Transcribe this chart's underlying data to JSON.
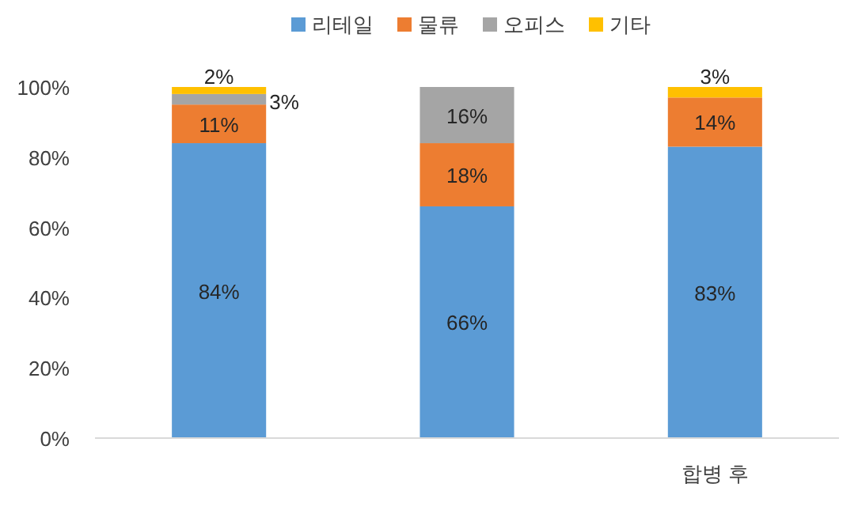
{
  "chart_data": {
    "type": "bar",
    "stacked": true,
    "categories": [
      null,
      null,
      "합병 후"
    ],
    "series": [
      {
        "name": "리테일",
        "color": "#5b9bd5",
        "values": [
          84,
          66,
          83
        ],
        "value_labels": [
          "84%",
          "66%",
          "83%"
        ]
      },
      {
        "name": "물류",
        "color": "#ed7d31",
        "values": [
          11,
          18,
          14
        ],
        "value_labels": [
          "11%",
          "18%",
          "14%"
        ]
      },
      {
        "name": "오피스",
        "color": "#a5a5a5",
        "values": [
          3,
          16,
          0
        ],
        "value_labels": [
          "3%",
          "16%",
          null
        ]
      },
      {
        "name": "기타",
        "color": "#ffc000",
        "values": [
          2,
          0,
          3
        ],
        "value_labels": [
          "2%",
          null,
          "3%"
        ]
      }
    ],
    "ylim": [
      0,
      100
    ],
    "yticks": [
      {
        "value": 0,
        "label": "0%"
      },
      {
        "value": 20,
        "label": "20%"
      },
      {
        "value": 40,
        "label": "40%"
      },
      {
        "value": 60,
        "label": "60%"
      },
      {
        "value": 80,
        "label": "80%"
      },
      {
        "value": 100,
        "label": "100%"
      }
    ],
    "grid": false,
    "legend": "top"
  }
}
